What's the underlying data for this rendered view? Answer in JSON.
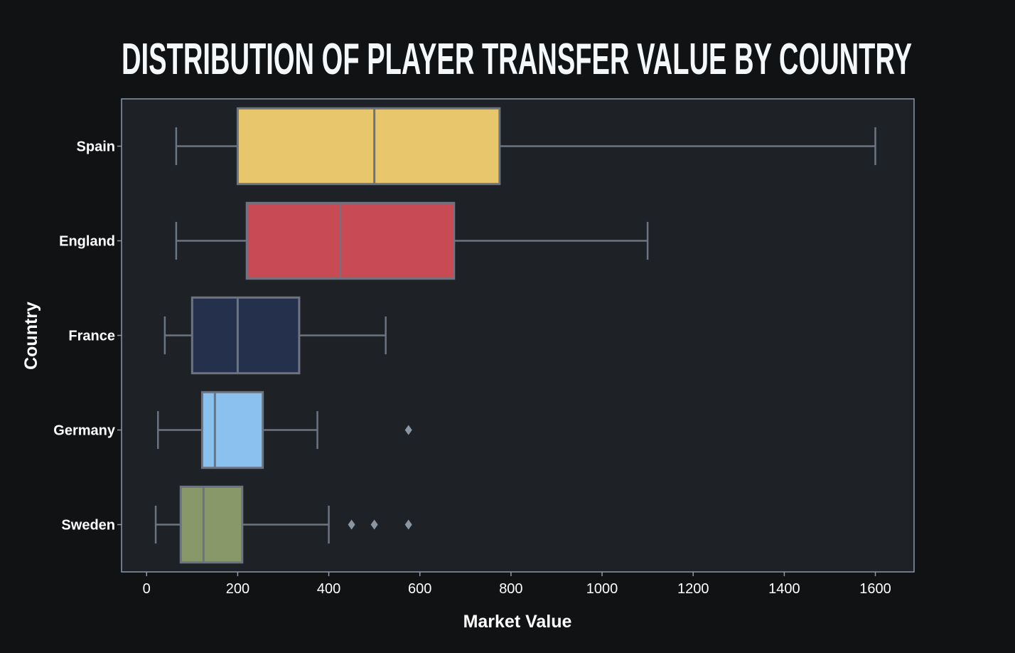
{
  "chart_data": {
    "type": "box",
    "orientation": "horizontal",
    "title": "DISTRIBUTION OF PLAYER TRANSFER VALUE BY COUNTRY",
    "xlabel": "Market Value",
    "ylabel": "Country",
    "xlim": [
      -55,
      1685
    ],
    "xticks": [
      0,
      200,
      400,
      600,
      800,
      1000,
      1200,
      1400,
      1600
    ],
    "grid": false,
    "legend": "none",
    "colors": {
      "page_background": "#111213",
      "plot_background": "#1e2226",
      "frame": "#8b98a8",
      "whisker": "#6b7480",
      "outlier": "#8a96a4"
    },
    "categories": [
      "Spain",
      "England",
      "France",
      "Germany",
      "Sweden"
    ],
    "boxes": [
      {
        "category": "Spain",
        "whisker_low": 65,
        "q1": 200,
        "median": 500,
        "q3": 775,
        "whisker_high": 1600,
        "outliers": [],
        "color": "#e8c66b"
      },
      {
        "category": "England",
        "whisker_low": 65,
        "q1": 220,
        "median": 425,
        "q3": 675,
        "whisker_high": 1100,
        "outliers": [],
        "color": "#c84a55"
      },
      {
        "category": "France",
        "whisker_low": 40,
        "q1": 100,
        "median": 200,
        "q3": 335,
        "whisker_high": 525,
        "outliers": [],
        "color": "#25314c"
      },
      {
        "category": "Germany",
        "whisker_low": 25,
        "q1": 122,
        "median": 150,
        "q3": 255,
        "whisker_high": 375,
        "outliers": [
          575
        ],
        "color": "#8bc1ef"
      },
      {
        "category": "Sweden",
        "whisker_low": 20,
        "q1": 75,
        "median": 125,
        "q3": 210,
        "whisker_high": 400,
        "outliers": [
          450,
          500,
          575
        ],
        "color": "#889868"
      }
    ]
  }
}
